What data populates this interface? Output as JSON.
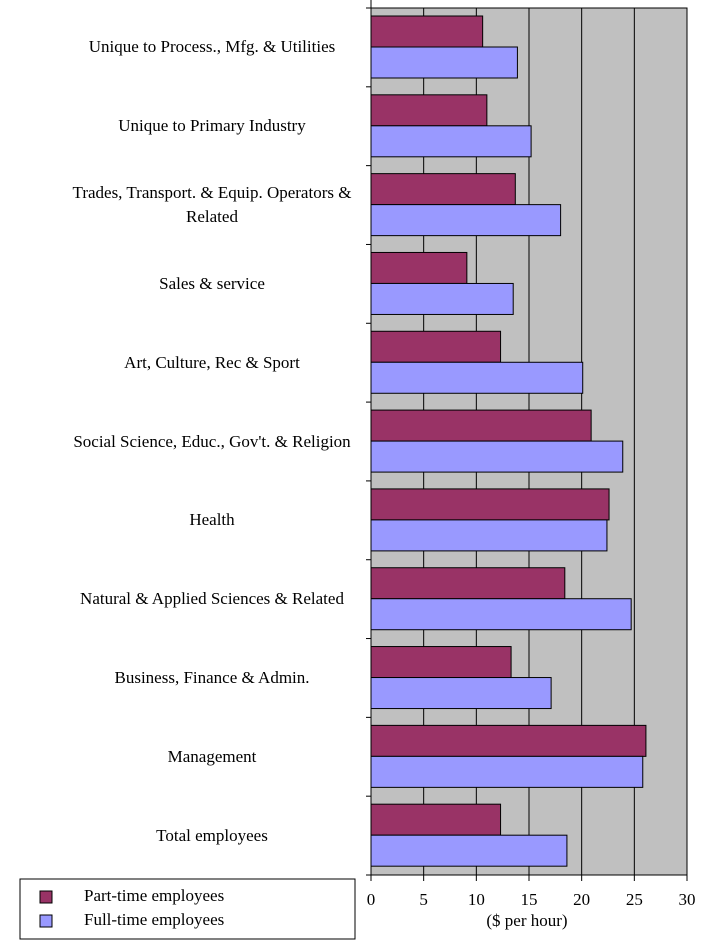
{
  "chart_data": {
    "type": "hbar",
    "x_label": "($ per hour)",
    "categories": [
      "Unique to Process., Mfg. & Utilities",
      "Unique to Primary Industry",
      "Trades, Transport. & Equip. Operators & Related",
      "Sales & service",
      "Art, Culture, Rec & Sport",
      "Social Science, Educ., Gov't. & Religion",
      "Health",
      "Natural & Applied Sciences & Related",
      "Business, Finance & Admin.",
      "Management",
      "Total employees"
    ],
    "series": [
      {
        "name": "Part-time employees",
        "color": "#993366",
        "values": [
          10.6,
          11.0,
          13.7,
          9.1,
          12.3,
          20.9,
          22.6,
          18.4,
          13.3,
          26.1,
          12.3
        ]
      },
      {
        "name": "Full-time employees",
        "color": "#9999ff",
        "values": [
          13.9,
          15.2,
          18.0,
          13.5,
          20.1,
          23.9,
          22.4,
          24.7,
          17.1,
          25.8,
          18.6
        ]
      }
    ],
    "xlim": [
      0,
      30
    ],
    "xticks": [
      0,
      5,
      10,
      15,
      20,
      25,
      30
    ],
    "grid": true,
    "legend": "bottom-left"
  }
}
